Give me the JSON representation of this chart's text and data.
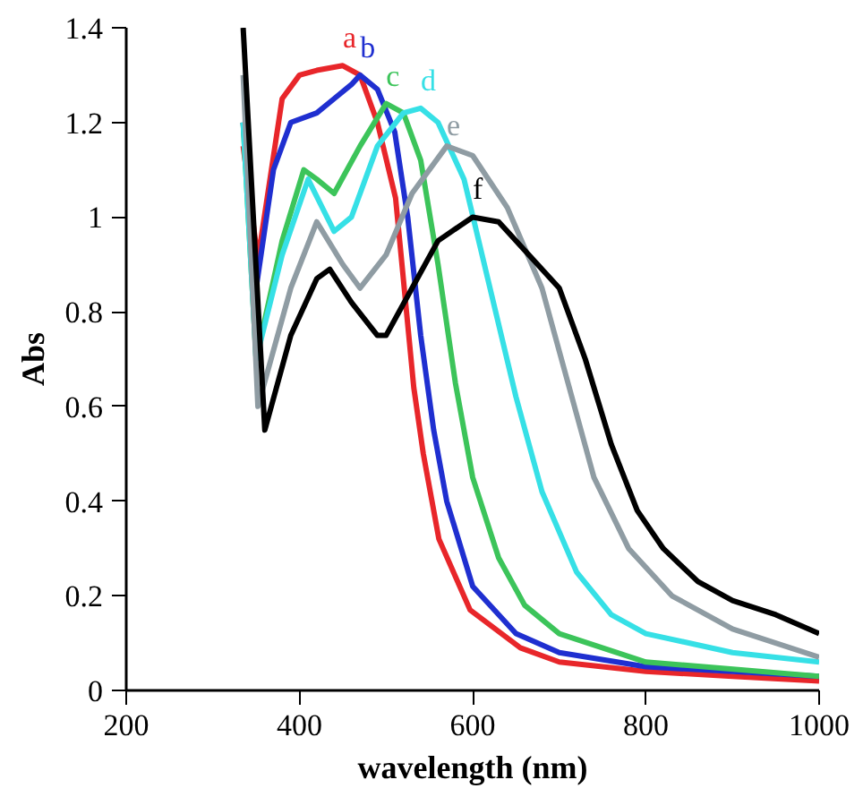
{
  "chart_data": {
    "type": "line",
    "xlabel": "wavelength (nm)",
    "ylabel": "Abs",
    "xlim": [
      200,
      1000
    ],
    "xticks": [
      200,
      400,
      600,
      800,
      1000
    ],
    "ylim": [
      0,
      1.4
    ],
    "yticks": [
      0,
      0.2,
      0.4,
      0.6,
      0.8,
      1,
      1.2,
      1.4
    ],
    "grid": false,
    "marker": "none",
    "line_style": "solid",
    "series": [
      {
        "name": "a",
        "color": "#e8262a",
        "x": [
          335,
          352,
          380,
          400,
          420,
          450,
          470,
          490,
          511,
          532,
          543,
          561,
          597,
          655,
          700,
          800,
          900,
          1000
        ],
        "values": [
          1.15,
          0.91,
          1.25,
          1.3,
          1.31,
          1.32,
          1.3,
          1.2,
          1.04,
          0.64,
          0.5,
          0.32,
          0.17,
          0.09,
          0.06,
          0.04,
          0.03,
          0.02
        ]
      },
      {
        "name": "b",
        "color": "#1f2fd0",
        "x": [
          335,
          350,
          370,
          390,
          420,
          440,
          460,
          470,
          490,
          510,
          525,
          540,
          555,
          570,
          600,
          650,
          700,
          800,
          900,
          1000
        ],
        "values": [
          1.2,
          0.85,
          1.1,
          1.2,
          1.22,
          1.25,
          1.28,
          1.3,
          1.27,
          1.18,
          1.0,
          0.75,
          0.55,
          0.4,
          0.22,
          0.12,
          0.08,
          0.05,
          0.04,
          0.03
        ]
      },
      {
        "name": "c",
        "color": "#3cc45a",
        "x": [
          335,
          350,
          380,
          405,
          420,
          440,
          470,
          500,
          520,
          540,
          560,
          580,
          600,
          630,
          660,
          700,
          800,
          1000
        ],
        "values": [
          1.2,
          0.7,
          0.95,
          1.1,
          1.08,
          1.05,
          1.15,
          1.24,
          1.22,
          1.12,
          0.9,
          0.65,
          0.45,
          0.28,
          0.18,
          0.12,
          0.06,
          0.03
        ]
      },
      {
        "name": "d",
        "color": "#36e0e6",
        "x": [
          335,
          350,
          380,
          410,
          440,
          460,
          490,
          520,
          540,
          560,
          590,
          620,
          650,
          680,
          720,
          760,
          800,
          900,
          1000
        ],
        "values": [
          1.2,
          0.7,
          0.92,
          1.08,
          0.97,
          1.0,
          1.15,
          1.22,
          1.23,
          1.2,
          1.08,
          0.85,
          0.62,
          0.42,
          0.25,
          0.16,
          0.12,
          0.08,
          0.06
        ]
      },
      {
        "name": "e",
        "color": "#8f9ca3",
        "x": [
          335,
          352,
          390,
          420,
          450,
          470,
          500,
          530,
          570,
          600,
          640,
          680,
          710,
          740,
          780,
          830,
          900,
          1000
        ],
        "values": [
          1.3,
          0.6,
          0.85,
          0.99,
          0.9,
          0.85,
          0.92,
          1.05,
          1.15,
          1.13,
          1.02,
          0.85,
          0.65,
          0.45,
          0.3,
          0.2,
          0.13,
          0.07
        ]
      },
      {
        "name": "f",
        "color": "#000000",
        "x": [
          335,
          360,
          390,
          420,
          435,
          460,
          490,
          500,
          530,
          560,
          600,
          630,
          660,
          700,
          730,
          760,
          790,
          820,
          860,
          900,
          950,
          1000
        ],
        "values": [
          1.4,
          0.55,
          0.75,
          0.87,
          0.89,
          0.82,
          0.75,
          0.75,
          0.85,
          0.95,
          1.0,
          0.99,
          0.93,
          0.85,
          0.7,
          0.52,
          0.38,
          0.3,
          0.23,
          0.19,
          0.16,
          0.12
        ]
      }
    ]
  }
}
